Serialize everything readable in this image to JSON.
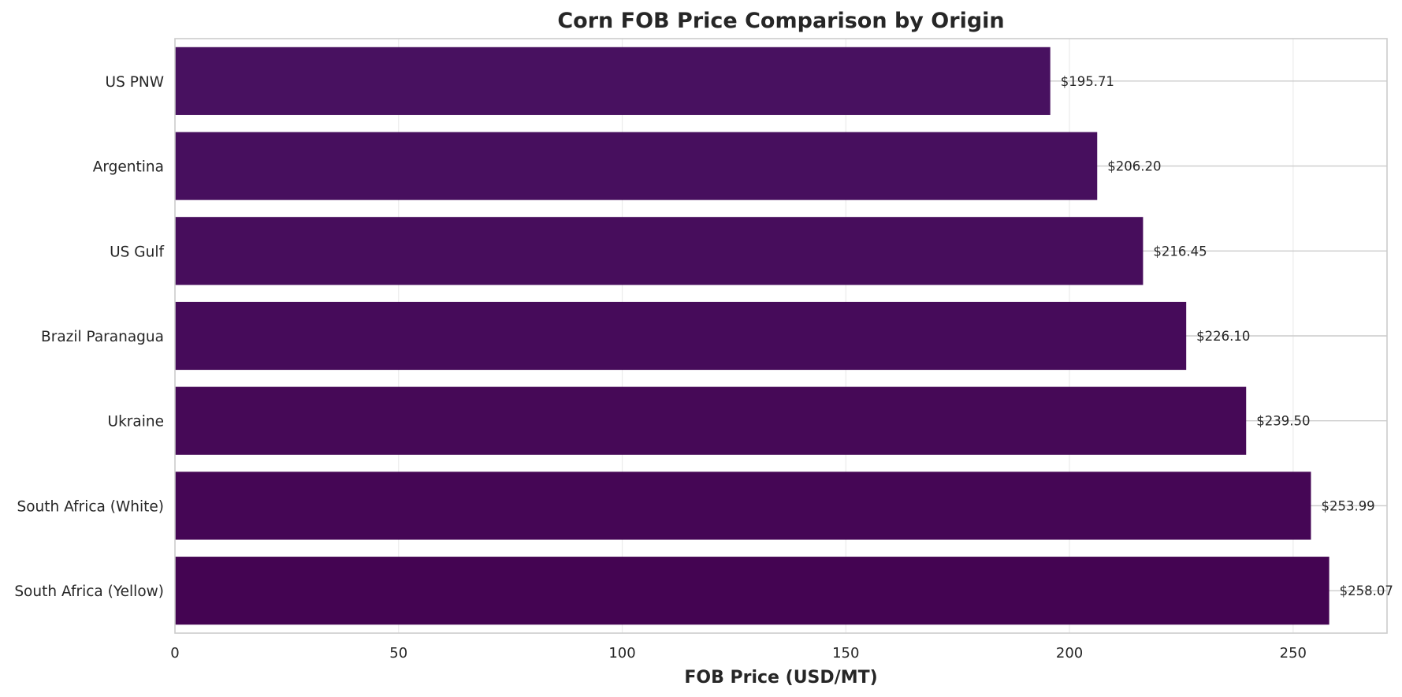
{
  "chart_data": {
    "type": "bar",
    "orientation": "horizontal",
    "title": "Corn FOB Price Comparison by Origin",
    "xlabel": "FOB Price (USD/MT)",
    "ylabel": "",
    "categories": [
      "US PNW",
      "Argentina",
      "US Gulf",
      "Brazil Paranagua",
      "Ukraine",
      "South Africa (White)",
      "South Africa (Yellow)"
    ],
    "values": [
      195.71,
      206.2,
      216.45,
      226.1,
      239.5,
      253.99,
      258.07
    ],
    "value_labels": [
      "$195.71",
      "$206.20",
      "$216.45",
      "$226.10",
      "$239.50",
      "$253.99",
      "$258.07"
    ],
    "xlim": [
      0,
      271
    ],
    "xticks": [
      0,
      50,
      100,
      150,
      200,
      250
    ],
    "xtick_labels": [
      "0",
      "50",
      "100",
      "150",
      "200",
      "250"
    ],
    "bar_colors": [
      "#481160",
      "#470f5e",
      "#470d5c",
      "#460b5a",
      "#460957",
      "#450655",
      "#440452"
    ],
    "grid": true
  }
}
